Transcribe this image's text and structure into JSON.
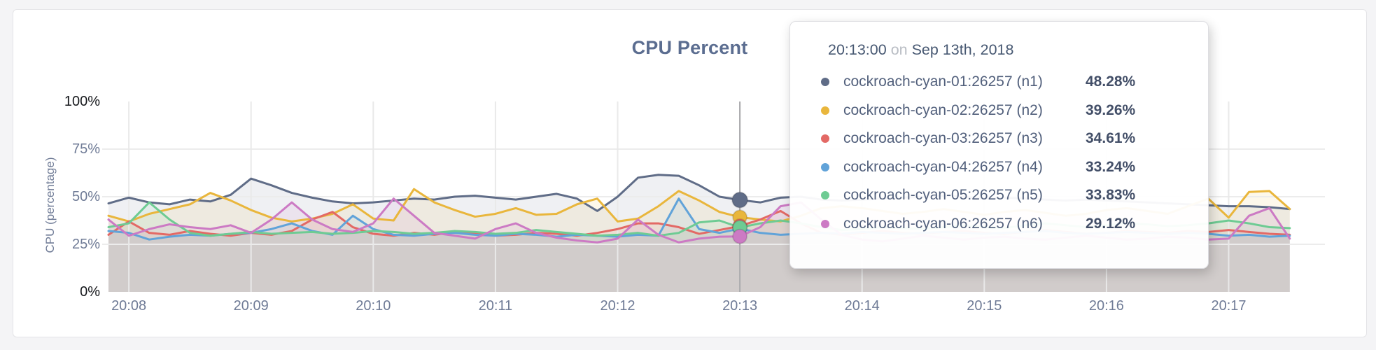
{
  "page": {
    "background": "#f4f4f6"
  },
  "chart": {
    "title": "CPU Percent",
    "y_axis": {
      "title": "CPU (percentage)",
      "tick_labels": [
        "100%",
        "75%",
        "50%",
        "25%",
        "0%"
      ]
    },
    "x_axis": {
      "tick_labels": [
        "20:08",
        "20:09",
        "20:10",
        "20:11",
        "20:12",
        "20:13",
        "20:14",
        "20:15",
        "20:16",
        "20:17"
      ]
    }
  },
  "tooltip": {
    "time": "20:13:00",
    "conjunction": "on",
    "date": "Sep 13th, 2018",
    "rows": [
      {
        "label": "cockroach-cyan-01:26257 (n1)",
        "value": "48.28%",
        "color": "#5f6c87"
      },
      {
        "label": "cockroach-cyan-02:26257 (n2)",
        "value": "39.26%",
        "color": "#e9b63c"
      },
      {
        "label": "cockroach-cyan-03:26257 (n3)",
        "value": "34.61%",
        "color": "#e36965"
      },
      {
        "label": "cockroach-cyan-04:26257 (n4)",
        "value": "33.24%",
        "color": "#61a3d9"
      },
      {
        "label": "cockroach-cyan-05:26257 (n5)",
        "value": "33.83%",
        "color": "#6ecb93"
      },
      {
        "label": "cockroach-cyan-06:26257 (n6)",
        "value": "29.12%",
        "color": "#cc7ac4"
      }
    ]
  },
  "chart_data": {
    "type": "area",
    "title": "CPU Percent",
    "ylabel": "CPU (percentage)",
    "ylim": [
      0,
      100
    ],
    "y_tick_labels": [
      "100%",
      "75%",
      "50%",
      "25%",
      "0%"
    ],
    "x_tick_labels": [
      "20:08",
      "20:09",
      "20:10",
      "20:11",
      "20:12",
      "20:13",
      "20:14",
      "20:15",
      "20:16",
      "20:17"
    ],
    "x_start": "20:07:50",
    "x_end": "20:17:30",
    "x_step_seconds": 10,
    "grid": "on",
    "hover": {
      "index": 31,
      "time": "20:13:00",
      "date": "Sep 13th, 2018"
    },
    "series": [
      {
        "name": "cockroach-cyan-01:26257 (n1)",
        "color": "#5f6c87",
        "hover_value": 48.28,
        "values": [
          46.5,
          49.5,
          47,
          46,
          48.5,
          47.5,
          51,
          59.5,
          56,
          52,
          49.5,
          47.5,
          46.5,
          47,
          48,
          49,
          48.5,
          50,
          50.5,
          49.5,
          48.5,
          50,
          51.5,
          49,
          42.5,
          50,
          60,
          61.5,
          61,
          56,
          50,
          48.28,
          47,
          49.5,
          50,
          48.5,
          48,
          48.5,
          49,
          49.5,
          50,
          50.5,
          50,
          49,
          49.5,
          49,
          48.5,
          48,
          48.5,
          48,
          47.5,
          47,
          46.5,
          46,
          45.5,
          45,
          45,
          44.5,
          43.5
        ]
      },
      {
        "name": "cockroach-cyan-02:26257 (n2)",
        "color": "#e9b63c",
        "hover_value": 39.26,
        "values": [
          40,
          37,
          41,
          43.5,
          46,
          52,
          48,
          43,
          39,
          37,
          38.5,
          41,
          46,
          38.5,
          37.5,
          54,
          47,
          43,
          39.5,
          41,
          44,
          40.5,
          41,
          46,
          49,
          37,
          38.5,
          45,
          53,
          48,
          42,
          39.26,
          38,
          37,
          40,
          44,
          45,
          44,
          42.5,
          41,
          42,
          43.5,
          42,
          40.5,
          42,
          43,
          41.5,
          40,
          41,
          43,
          44,
          42.5,
          41,
          45,
          49,
          39,
          52.5,
          53,
          43.5
        ]
      },
      {
        "name": "cockroach-cyan-03:26257 (n3)",
        "color": "#e36965",
        "hover_value": 34.61,
        "values": [
          30,
          37,
          31,
          30,
          32,
          30.5,
          29.5,
          31,
          30,
          32,
          38,
          42,
          34,
          30.5,
          29.5,
          31,
          30,
          31.5,
          30.5,
          29.5,
          30,
          31,
          30.5,
          29.5,
          31,
          33,
          36,
          36,
          34,
          30.5,
          32.5,
          34.61,
          38,
          42.5,
          36,
          31,
          30,
          31,
          32,
          31,
          30.5,
          31.5,
          32,
          31,
          30.5,
          31.5,
          32.5,
          31.5,
          30.5,
          31,
          32,
          31.5,
          31,
          32,
          31.5,
          32.5,
          31.5,
          30.5,
          30
        ]
      },
      {
        "name": "cockroach-cyan-04:26257 (n4)",
        "color": "#61a3d9",
        "hover_value": 33.24,
        "values": [
          32,
          31,
          27.5,
          29,
          30,
          29.5,
          30.5,
          31,
          33,
          36,
          32,
          30,
          40,
          33,
          30,
          29.5,
          30.5,
          31,
          30,
          29.5,
          30.5,
          30,
          29,
          30,
          29.5,
          29,
          30,
          29.5,
          49,
          33,
          31,
          33.24,
          31,
          30,
          30.5,
          31,
          30.5,
          31.5,
          31,
          30.5,
          31,
          31.5,
          31,
          30.5,
          31,
          31.5,
          32,
          31,
          30.5,
          31,
          31.5,
          31,
          30.5,
          31,
          30.5,
          29.5,
          30,
          29,
          29.5
        ]
      },
      {
        "name": "cockroach-cyan-05:26257 (n5)",
        "color": "#6ecb93",
        "hover_value": 33.83,
        "values": [
          34,
          36,
          47,
          38,
          31,
          29.5,
          30.5,
          31.5,
          30.5,
          31,
          31.5,
          30.5,
          31,
          32,
          31.5,
          30.5,
          31,
          32,
          31.5,
          30.5,
          31,
          32.5,
          31.5,
          30.5,
          29.5,
          30,
          31,
          29.5,
          31,
          36.5,
          37.5,
          33.83,
          36,
          37.5,
          36,
          34,
          32.5,
          33,
          34,
          33.5,
          33,
          34,
          35,
          34,
          33.5,
          35,
          36,
          35,
          34,
          35,
          36,
          35.5,
          34.5,
          35,
          36,
          37.5,
          36,
          34,
          33.5
        ]
      },
      {
        "name": "cockroach-cyan-06:26257 (n6)",
        "color": "#cc7ac4",
        "hover_value": 29.12,
        "values": [
          38,
          29.5,
          33,
          35.5,
          34,
          33,
          35,
          31,
          38,
          47,
          38,
          33,
          31.5,
          36,
          49,
          40,
          31,
          29.5,
          28,
          33,
          36,
          31,
          28.5,
          27,
          26,
          28,
          38,
          30,
          26,
          28,
          29,
          29.12,
          34,
          45,
          47,
          38,
          30,
          27.5,
          26.5,
          28,
          29.5,
          28.5,
          27.5,
          28.5,
          29,
          28,
          27.5,
          28.5,
          29.5,
          28.5,
          27.5,
          28,
          29,
          28.5,
          27.5,
          28,
          40,
          44,
          28
        ]
      }
    ]
  }
}
